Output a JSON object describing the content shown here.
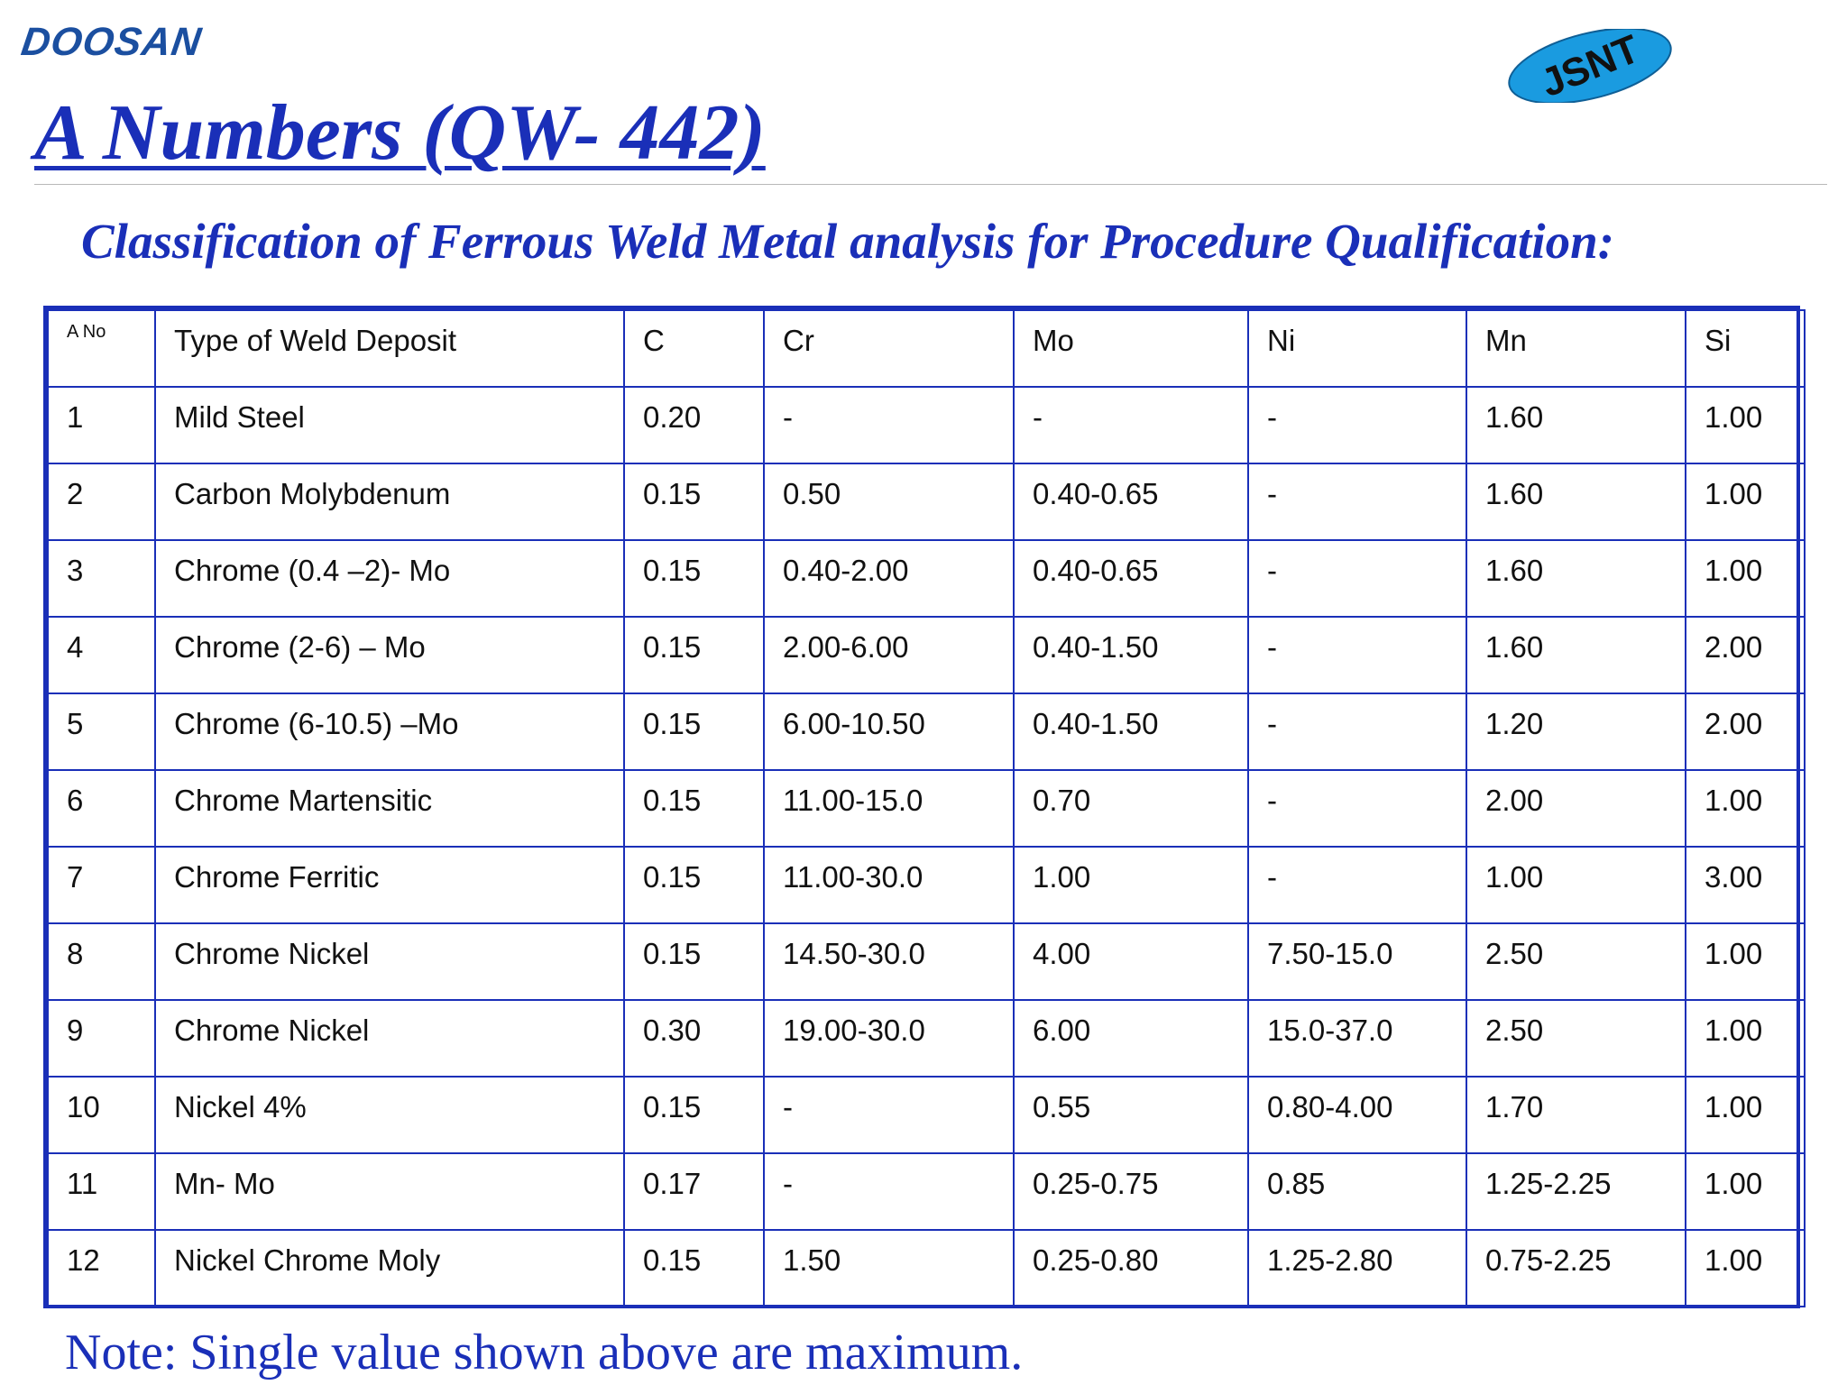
{
  "header": {
    "company_logo_text": "DOOSAN",
    "badge_logo_text": "JSNT",
    "title": "A Numbers (QW- 442)",
    "subtitle": "Classification of Ferrous Weld Metal analysis for Procedure Qualification:"
  },
  "colors": {
    "accent": "#1a2fb8",
    "logo_blue": "#1b4fa0",
    "badge_fill": "#1a9be0"
  },
  "table": {
    "columns": [
      "A No",
      "Type of Weld Deposit",
      "C",
      "Cr",
      "Mo",
      "Ni",
      "Mn",
      "Si"
    ],
    "rows": [
      [
        "1",
        "Mild Steel",
        "0.20",
        "-",
        "-",
        "-",
        "1.60",
        "1.00"
      ],
      [
        "2",
        "Carbon Molybdenum",
        "0.15",
        "0.50",
        "0.40-0.65",
        "-",
        "1.60",
        "1.00"
      ],
      [
        "3",
        "Chrome (0.4 –2)- Mo",
        "0.15",
        "0.40-2.00",
        "0.40-0.65",
        "-",
        "1.60",
        "1.00"
      ],
      [
        "4",
        "Chrome (2-6) – Mo",
        "0.15",
        "2.00-6.00",
        "0.40-1.50",
        "-",
        "1.60",
        "2.00"
      ],
      [
        "5",
        "Chrome (6-10.5) –Mo",
        "0.15",
        "6.00-10.50",
        "0.40-1.50",
        "-",
        "1.20",
        "2.00"
      ],
      [
        "6",
        "Chrome Martensitic",
        "0.15",
        "11.00-15.0",
        "0.70",
        "-",
        "2.00",
        "1.00"
      ],
      [
        "7",
        "Chrome Ferritic",
        "0.15",
        "11.00-30.0",
        "1.00",
        "-",
        "1.00",
        "3.00"
      ],
      [
        "8",
        "Chrome Nickel",
        "0.15",
        "14.50-30.0",
        "4.00",
        "7.50-15.0",
        "2.50",
        "1.00"
      ],
      [
        "9",
        "Chrome Nickel",
        "0.30",
        "19.00-30.0",
        "6.00",
        "15.0-37.0",
        "2.50",
        "1.00"
      ],
      [
        "10",
        "Nickel 4%",
        "0.15",
        "-",
        "0.55",
        "0.80-4.00",
        "1.70",
        "1.00"
      ],
      [
        "11",
        "Mn- Mo",
        "0.17",
        "-",
        "0.25-0.75",
        "0.85",
        "1.25-2.25",
        "1.00"
      ],
      [
        "12",
        "Nickel Chrome Moly",
        "0.15",
        "1.50",
        "0.25-0.80",
        "1.25-2.80",
        "0.75-2.25",
        "1.00"
      ]
    ]
  },
  "note": "Note: Single value shown above are maximum."
}
